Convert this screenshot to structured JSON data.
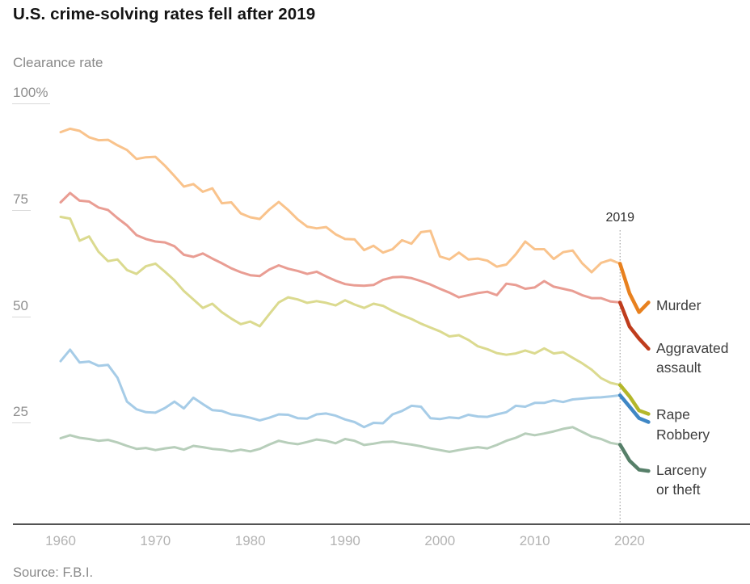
{
  "page": {
    "source": "Source: F.B.I."
  },
  "chart_data": {
    "type": "line",
    "title": "U.S. crime-solving rates fell after 2019",
    "ylabel": "Clearance rate",
    "xlabel": "",
    "grid": false,
    "ylim": [
      0,
      100
    ],
    "xlim": [
      1960,
      2022
    ],
    "y_ticks": [
      {
        "value": 100,
        "label": "100%"
      },
      {
        "value": 75,
        "label": "75"
      },
      {
        "value": 50,
        "label": "50"
      },
      {
        "value": 25,
        "label": "25"
      }
    ],
    "x_ticks": [
      1960,
      1970,
      1980,
      1990,
      2000,
      2010,
      2020
    ],
    "annotation": {
      "text": "2019",
      "year": 2019
    },
    "pivot_year": 2019,
    "legend_position": "right-of-line-ends",
    "colors": {
      "dotted_rule": "#a3a3a3",
      "axis_line": "#535353"
    },
    "years": [
      1960,
      1961,
      1962,
      1963,
      1964,
      1965,
      1966,
      1967,
      1968,
      1969,
      1970,
      1971,
      1972,
      1973,
      1974,
      1975,
      1976,
      1977,
      1978,
      1979,
      1980,
      1981,
      1982,
      1983,
      1984,
      1985,
      1986,
      1987,
      1988,
      1989,
      1990,
      1991,
      1992,
      1993,
      1994,
      1995,
      1996,
      1997,
      1998,
      1999,
      2000,
      2001,
      2002,
      2003,
      2004,
      2005,
      2006,
      2007,
      2008,
      2009,
      2010,
      2011,
      2012,
      2013,
      2014,
      2015,
      2016,
      2017,
      2018,
      2019,
      2020,
      2021,
      2022
    ],
    "series": [
      {
        "name": "Murder",
        "label_lines": [
          "Murder"
        ],
        "label_y": 378,
        "color_pre": "#f9c38c",
        "color_post": "#e8811f",
        "values": [
          92.3,
          93.1,
          92.6,
          91.1,
          90.4,
          90.5,
          89.2,
          88.1,
          86.0,
          86.4,
          86.5,
          84.4,
          82.0,
          79.5,
          80.1,
          78.3,
          79.1,
          75.6,
          75.8,
          73.2,
          72.3,
          71.9,
          74.1,
          75.9,
          74.0,
          71.8,
          70.1,
          69.7,
          70.0,
          68.3,
          67.2,
          67.1,
          64.6,
          65.6,
          64.0,
          64.8,
          66.9,
          66.1,
          68.8,
          69.1,
          63.1,
          62.4,
          64.0,
          62.4,
          62.6,
          62.1,
          60.7,
          61.2,
          63.6,
          66.6,
          64.8,
          64.8,
          62.5,
          64.1,
          64.5,
          61.5,
          59.4,
          61.6,
          62.3,
          61.4,
          54.4,
          50.0,
          52.3
        ]
      },
      {
        "name": "Aggravated assault",
        "label_lines": [
          "Aggravated",
          "assault"
        ],
        "label_y": 431,
        "color_pre": "#e99d93",
        "color_post": "#bf3d1d",
        "values": [
          75.8,
          78.0,
          76.2,
          76.0,
          74.6,
          74.0,
          72.1,
          70.4,
          68.1,
          67.2,
          66.6,
          66.4,
          65.5,
          63.5,
          63.0,
          63.8,
          62.6,
          61.5,
          60.3,
          59.4,
          58.7,
          58.5,
          60.0,
          61.0,
          60.2,
          59.7,
          59.0,
          59.5,
          58.4,
          57.4,
          56.6,
          56.3,
          56.2,
          56.4,
          57.6,
          58.2,
          58.3,
          58.0,
          57.3,
          56.5,
          55.5,
          54.6,
          53.5,
          54.0,
          54.5,
          54.8,
          54.0,
          56.7,
          56.4,
          55.5,
          55.8,
          57.3,
          56.0,
          55.5,
          55.0,
          54.0,
          53.3,
          53.3,
          52.5,
          52.3,
          46.6,
          43.8,
          41.4
        ]
      },
      {
        "name": "Rape",
        "label_lines": [
          "Rape"
        ],
        "label_y": 513,
        "color_pre": "#dbda8f",
        "color_post": "#b4b72a",
        "values": [
          72.4,
          72.0,
          66.8,
          67.8,
          64.2,
          62.0,
          62.4,
          59.9,
          59.0,
          60.8,
          61.4,
          59.5,
          57.5,
          55.0,
          53.0,
          51.0,
          52.0,
          50.0,
          48.5,
          47.2,
          47.8,
          46.7,
          49.5,
          52.3,
          53.5,
          53.0,
          52.2,
          52.6,
          52.2,
          51.6,
          52.8,
          51.8,
          51.0,
          52.0,
          51.5,
          50.3,
          49.3,
          48.4,
          47.3,
          46.4,
          45.5,
          44.3,
          44.6,
          43.5,
          42.0,
          41.3,
          40.4,
          40.0,
          40.3,
          41.0,
          40.3,
          41.5,
          40.3,
          40.6,
          39.3,
          38.0,
          36.5,
          34.5,
          33.4,
          32.9,
          30.2,
          26.9,
          26.1
        ]
      },
      {
        "name": "Robbery",
        "label_lines": [
          "Robbery"
        ],
        "label_y": 538,
        "color_pre": "#a6cce7",
        "color_post": "#3f87c5",
        "values": [
          38.5,
          41.2,
          38.2,
          38.4,
          37.4,
          37.6,
          34.6,
          29.0,
          27.2,
          26.5,
          26.4,
          27.5,
          29.0,
          27.4,
          29.9,
          28.4,
          27.0,
          26.8,
          26.0,
          25.7,
          25.2,
          24.6,
          25.2,
          26.0,
          25.9,
          25.1,
          25.0,
          26.0,
          26.2,
          25.7,
          24.8,
          24.2,
          23.0,
          24.0,
          23.9,
          26.0,
          26.8,
          28.0,
          27.8,
          25.1,
          24.9,
          25.3,
          25.1,
          25.9,
          25.5,
          25.4,
          26.0,
          26.5,
          28.0,
          27.8,
          28.7,
          28.7,
          29.3,
          28.9,
          29.5,
          29.7,
          29.9,
          30.0,
          30.2,
          30.5,
          27.8,
          25.1,
          24.2
        ]
      },
      {
        "name": "Larceny or theft",
        "label_lines": [
          "Larceny",
          "or theft"
        ],
        "label_y": 582,
        "color_pre": "#b7ceba",
        "color_post": "#567f69",
        "values": [
          20.4,
          21.1,
          20.5,
          20.2,
          19.8,
          20.0,
          19.4,
          18.6,
          17.9,
          18.1,
          17.6,
          18.0,
          18.3,
          17.7,
          18.6,
          18.3,
          17.9,
          17.7,
          17.3,
          17.7,
          17.3,
          17.9,
          18.9,
          19.8,
          19.3,
          19.0,
          19.5,
          20.1,
          19.8,
          19.2,
          20.2,
          19.8,
          18.8,
          19.1,
          19.5,
          19.6,
          19.2,
          18.9,
          18.5,
          18.0,
          17.6,
          17.2,
          17.6,
          18.0,
          18.3,
          18.0,
          18.8,
          19.8,
          20.5,
          21.5,
          21.1,
          21.5,
          22.0,
          22.6,
          23.0,
          21.9,
          20.8,
          20.2,
          19.3,
          18.9,
          15.1,
          13.0,
          12.7
        ]
      }
    ]
  }
}
